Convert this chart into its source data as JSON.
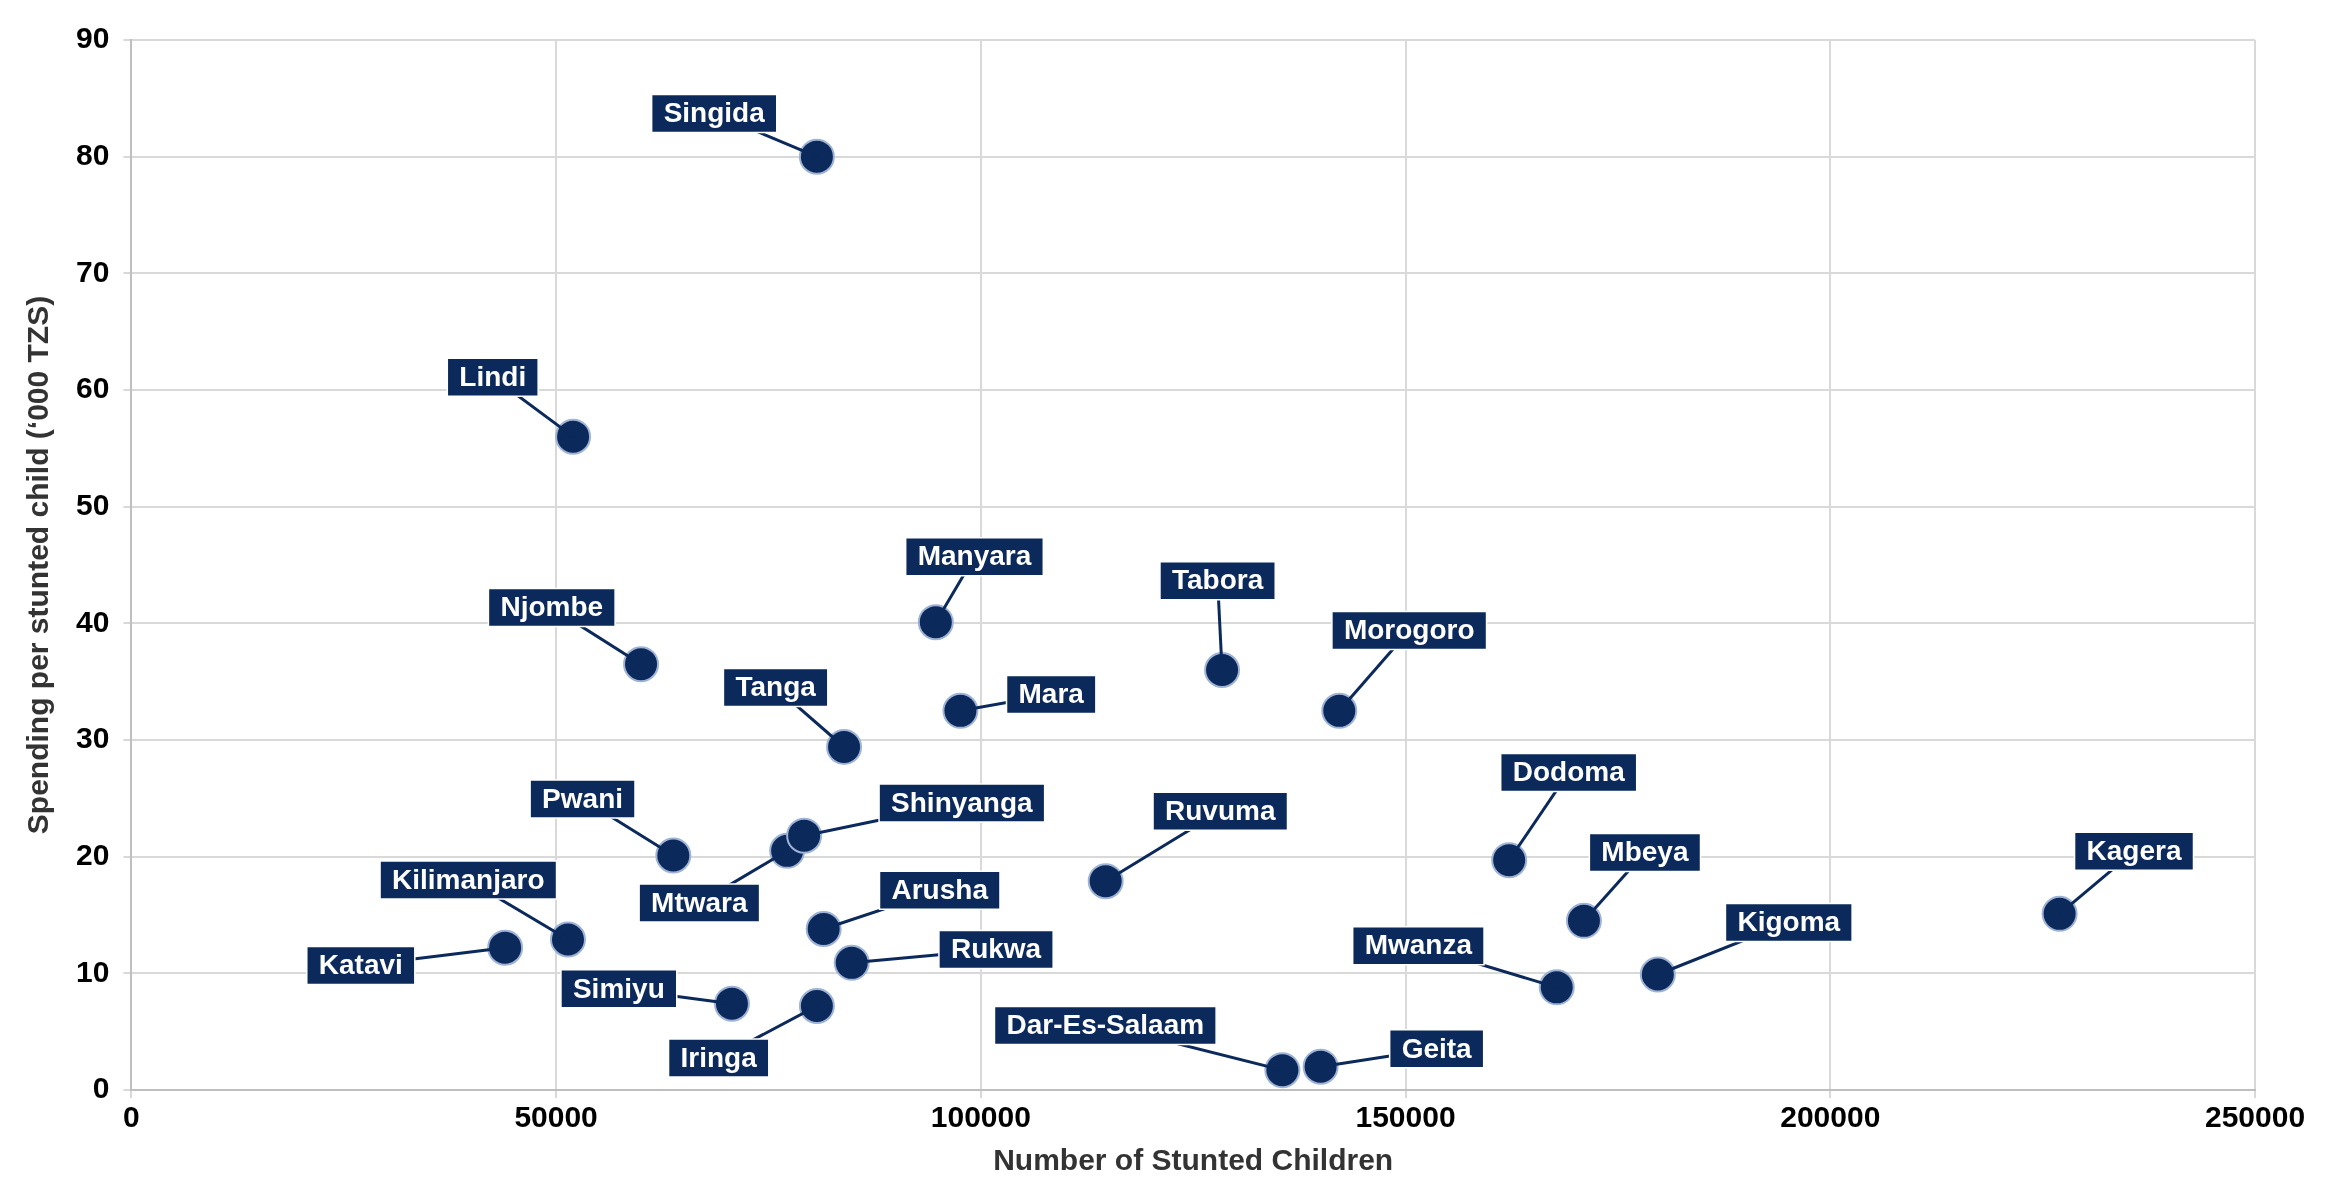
{
  "chart_data": {
    "type": "scatter",
    "xlabel": "Number of Stunted Children",
    "ylabel": "Spending per stunted child (‘000 TZS)",
    "x": [
      44000,
      51400,
      52000,
      60000,
      63800,
      70700,
      77200,
      79200,
      80700,
      80700,
      81500,
      83900,
      84800,
      94700,
      97600,
      114700,
      128400,
      135500,
      140000,
      142200,
      162200,
      167800,
      171000,
      179700,
      227000
    ],
    "series": [
      {
        "color": "#0b2a5b",
        "values": [
          12.2,
          12.9,
          56,
          36.5,
          20.1,
          7.4,
          20.5,
          21.8,
          80,
          7.2,
          13.8,
          29.4,
          10.9,
          40.1,
          32.5,
          17.9,
          36,
          1.7,
          2,
          32.5,
          19.7,
          8.8,
          14.5,
          9.9,
          15.1
        ]
      }
    ],
    "annotations": [
      {
        "text": "Katavi",
        "x": 44000,
        "y": 12.2
      },
      {
        "text": "Kilimanjaro",
        "x": 51400,
        "y": 12.9
      },
      {
        "text": "Lindi",
        "x": 52000,
        "y": 56
      },
      {
        "text": "Njombe",
        "x": 60000,
        "y": 36.5
      },
      {
        "text": "Pwani",
        "x": 63800,
        "y": 20.1
      },
      {
        "text": "Simiyu",
        "x": 70700,
        "y": 7.4
      },
      {
        "text": "Mtwara",
        "x": 77200,
        "y": 20.5
      },
      {
        "text": "Shinyanga",
        "x": 79200,
        "y": 21.8
      },
      {
        "text": "Singida",
        "x": 80700,
        "y": 80
      },
      {
        "text": "Iringa",
        "x": 80700,
        "y": 7.2
      },
      {
        "text": "Arusha",
        "x": 81500,
        "y": 13.8
      },
      {
        "text": "Tanga",
        "x": 83900,
        "y": 29.4
      },
      {
        "text": "Rukwa",
        "x": 84800,
        "y": 10.9
      },
      {
        "text": "Manyara",
        "x": 94700,
        "y": 40.1
      },
      {
        "text": "Mara",
        "x": 97600,
        "y": 32.5
      },
      {
        "text": "Ruvuma",
        "x": 114700,
        "y": 17.9
      },
      {
        "text": "Tabora",
        "x": 128400,
        "y": 36
      },
      {
        "text": "Dar-Es-Salaam",
        "x": 135500,
        "y": 1.7
      },
      {
        "text": "Geita",
        "x": 140000,
        "y": 2
      },
      {
        "text": "Morogoro",
        "x": 142200,
        "y": 32.5
      },
      {
        "text": "Dodoma",
        "x": 162200,
        "y": 19.7
      },
      {
        "text": "Mwanza",
        "x": 167800,
        "y": 8.8
      },
      {
        "text": "Mbeya",
        "x": 171000,
        "y": 14.5
      },
      {
        "text": "Kigoma",
        "x": 179700,
        "y": 9.9
      },
      {
        "text": "Kagera",
        "x": 227000,
        "y": 15.1
      }
    ],
    "xlim": [
      0,
      250000
    ],
    "xticks": [
      0,
      50000,
      100000,
      150000,
      200000,
      250000
    ],
    "ylim": [
      0,
      90
    ],
    "yticks": [
      0,
      10,
      20,
      30,
      40,
      50,
      60,
      70,
      80,
      90
    ],
    "grid": true,
    "marker": "circle",
    "legend": false
  }
}
